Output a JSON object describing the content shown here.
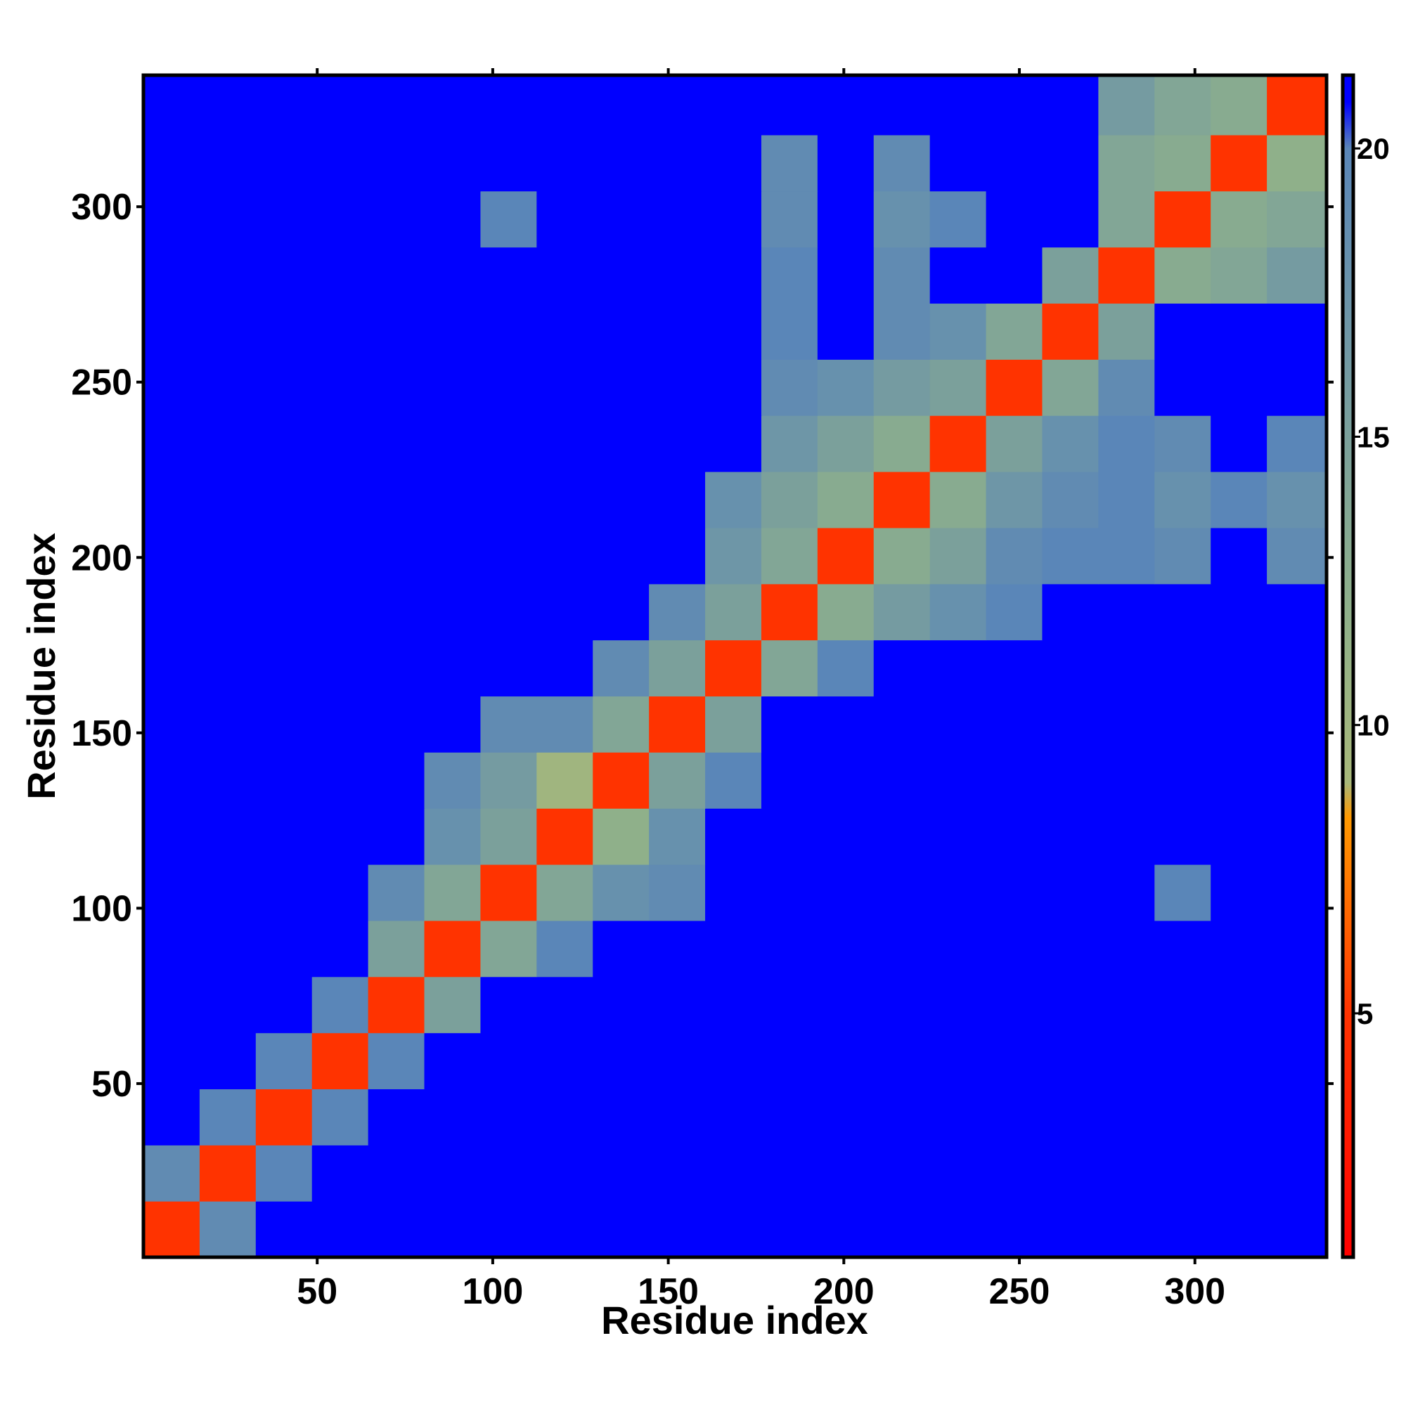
{
  "chart_data": {
    "type": "heatmap",
    "xlabel": "Residue index",
    "ylabel": "Residue index",
    "xlim": [
      0.5,
      337.5
    ],
    "ylim": [
      0.5,
      337.5
    ],
    "xticks": [
      50,
      100,
      150,
      200,
      250,
      300
    ],
    "yticks": [
      50,
      100,
      150,
      200,
      250,
      300
    ],
    "zlim": [
      0.77,
      21.27
    ],
    "zticks": [
      5,
      10,
      15,
      20
    ],
    "colorscale": [
      [
        0.77,
        "#ff0000"
      ],
      [
        5,
        "#ff3300"
      ],
      [
        8.4,
        "#ff9900"
      ],
      [
        9,
        "#a8b87a"
      ],
      [
        12,
        "#8fb08a"
      ],
      [
        20,
        "#5a86b8"
      ],
      [
        20.8,
        "#0000ff"
      ]
    ],
    "xbins": [
      0.5,
      16.5,
      32.5,
      48.5,
      64.5,
      80.5,
      96.5,
      112.5,
      128.5,
      144.5,
      160.5,
      176.5,
      192.5,
      208.5,
      224.5,
      240.5,
      256.5,
      272.5,
      288.5,
      304.5,
      320.5,
      337.5
    ],
    "ybins": [
      0.5,
      16.5,
      32.5,
      48.5,
      64.5,
      80.5,
      96.5,
      112.5,
      128.5,
      144.5,
      160.5,
      176.5,
      192.5,
      208.5,
      224.5,
      240.5,
      256.5,
      272.5,
      288.5,
      304.5,
      320.5,
      337.5
    ],
    "z": [
      [
        5,
        19,
        21,
        21,
        21,
        21,
        21,
        21,
        21,
        21,
        21,
        21,
        21,
        21,
        21,
        21,
        21,
        21,
        21,
        21,
        21
      ],
      [
        19,
        5,
        20,
        21,
        21,
        21,
        21,
        21,
        21,
        21,
        21,
        21,
        21,
        21,
        21,
        21,
        21,
        21,
        21,
        21,
        21
      ],
      [
        21,
        20,
        5,
        20,
        21,
        21,
        21,
        21,
        21,
        21,
        21,
        21,
        21,
        21,
        21,
        21,
        21,
        21,
        21,
        21,
        21
      ],
      [
        21,
        21,
        20,
        5,
        20,
        21,
        21,
        21,
        21,
        21,
        21,
        21,
        21,
        21,
        21,
        21,
        21,
        21,
        21,
        21,
        21
      ],
      [
        21,
        21,
        21,
        20,
        5,
        15,
        21,
        21,
        21,
        21,
        21,
        21,
        21,
        21,
        21,
        21,
        21,
        21,
        21,
        21,
        21
      ],
      [
        21,
        21,
        21,
        21,
        15,
        5,
        14,
        20,
        21,
        21,
        21,
        21,
        21,
        21,
        21,
        21,
        21,
        21,
        21,
        21,
        21
      ],
      [
        21,
        21,
        21,
        21,
        19,
        14,
        5,
        14,
        18,
        19,
        21,
        21,
        21,
        21,
        21,
        21,
        21,
        21,
        20,
        21,
        21
      ],
      [
        21,
        21,
        21,
        21,
        21,
        18,
        15,
        5,
        12,
        18,
        21,
        21,
        21,
        21,
        21,
        21,
        21,
        21,
        21,
        21,
        21
      ],
      [
        21,
        21,
        21,
        21,
        21,
        19,
        16,
        10,
        5,
        15,
        20,
        21,
        21,
        21,
        21,
        21,
        21,
        21,
        21,
        21,
        21
      ],
      [
        21,
        21,
        21,
        21,
        21,
        21,
        19,
        19,
        14,
        5,
        15,
        21,
        21,
        21,
        21,
        21,
        21,
        21,
        21,
        21,
        21
      ],
      [
        21,
        21,
        21,
        21,
        21,
        21,
        21,
        21,
        19,
        15,
        5,
        14,
        20,
        21,
        21,
        21,
        21,
        21,
        21,
        21,
        21
      ],
      [
        21,
        21,
        21,
        21,
        21,
        21,
        21,
        21,
        21,
        19,
        15,
        5,
        13,
        16,
        18,
        20,
        21,
        21,
        21,
        21,
        21
      ],
      [
        21,
        21,
        21,
        21,
        21,
        21,
        21,
        21,
        21,
        21,
        17,
        14,
        5,
        13,
        15,
        19,
        20,
        20,
        19,
        21,
        19
      ],
      [
        21,
        21,
        21,
        21,
        21,
        21,
        21,
        21,
        21,
        21,
        18,
        15,
        13,
        5,
        13,
        17,
        19,
        20,
        18,
        20,
        18
      ],
      [
        21,
        21,
        21,
        21,
        21,
        21,
        21,
        21,
        21,
        21,
        21,
        17,
        15,
        13,
        5,
        15,
        18,
        20,
        19,
        21,
        20
      ],
      [
        21,
        21,
        21,
        21,
        21,
        21,
        21,
        21,
        21,
        21,
        21,
        19,
        18,
        16,
        15,
        5,
        14,
        19,
        21,
        21,
        21
      ],
      [
        21,
        21,
        21,
        21,
        21,
        21,
        21,
        21,
        21,
        21,
        21,
        20,
        21,
        19,
        18,
        14,
        5,
        15,
        21,
        21,
        21
      ],
      [
        21,
        21,
        21,
        21,
        21,
        21,
        21,
        21,
        21,
        21,
        21,
        20,
        21,
        19,
        21,
        21,
        15,
        5,
        13,
        14,
        16
      ],
      [
        21,
        21,
        21,
        21,
        21,
        21,
        20,
        21,
        21,
        21,
        21,
        19,
        21,
        18,
        20,
        21,
        21,
        14,
        5,
        13,
        14
      ],
      [
        21,
        21,
        21,
        21,
        21,
        21,
        21,
        21,
        21,
        21,
        21,
        19,
        21,
        19,
        21,
        21,
        21,
        14,
        13,
        5,
        12
      ],
      [
        21,
        21,
        21,
        21,
        21,
        21,
        21,
        21,
        21,
        21,
        21,
        21,
        21,
        21,
        21,
        21,
        21,
        16,
        14,
        13,
        5
      ]
    ]
  }
}
